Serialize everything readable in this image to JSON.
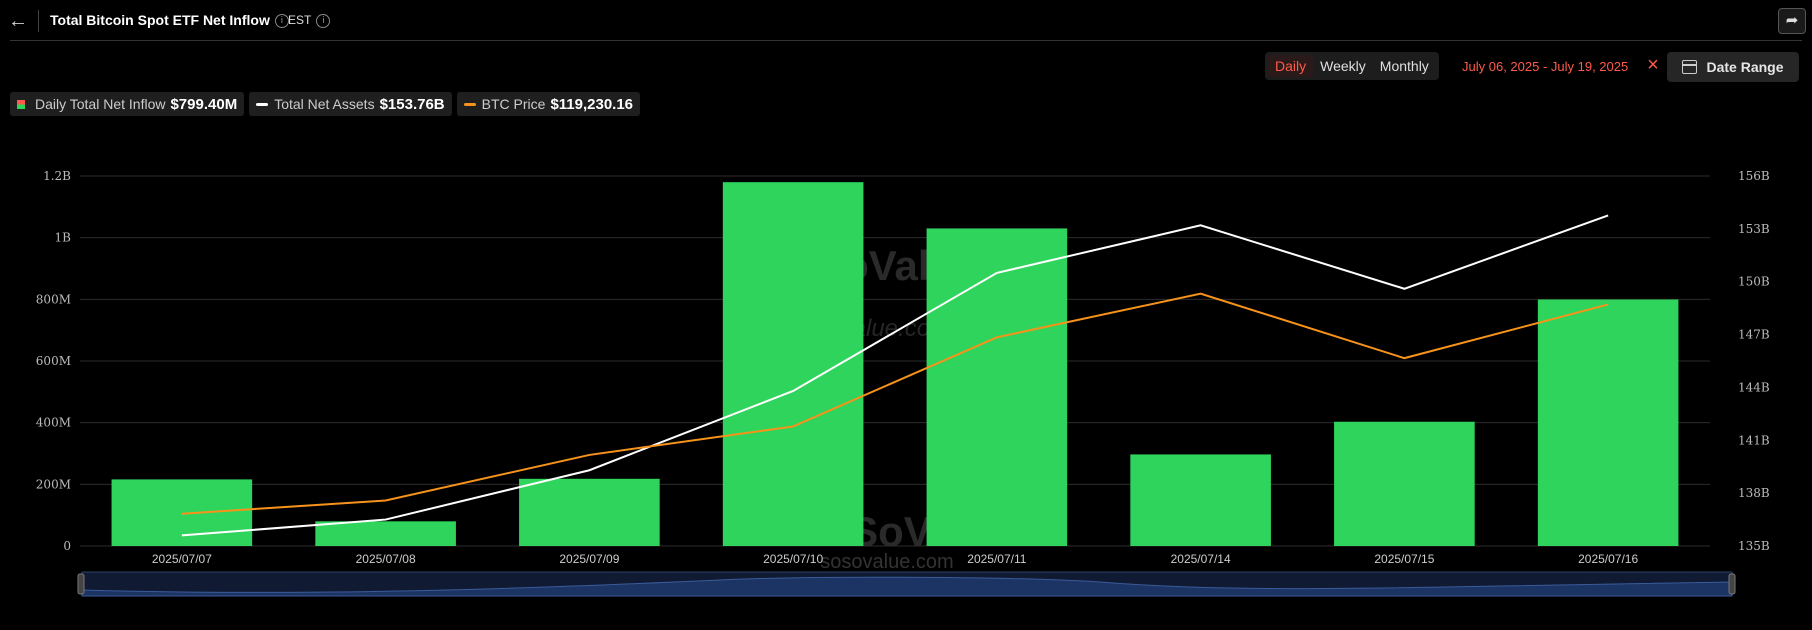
{
  "header": {
    "title": "Total Bitcoin Spot ETF Net Inflow",
    "timezone": "EST",
    "info_glyph": "i"
  },
  "controls": {
    "intervals": [
      "Daily",
      "Weekly",
      "Monthly"
    ],
    "active_interval": "Daily",
    "date_range_text": "July 06, 2025 - July 19, 2025",
    "date_range_button": "Date Range"
  },
  "legend": [
    {
      "label": "Daily Total Net Inflow",
      "value": "$799.40M",
      "color": "#2fd45c"
    },
    {
      "label": "Total Net Assets",
      "value": "$153.76B",
      "color": "#ffffff"
    },
    {
      "label": "BTC Price",
      "value": "$119,230.16",
      "color": "#f7931a"
    }
  ],
  "watermark": {
    "brand": "SoSoValue",
    "url": "sosovalue.com"
  },
  "chart_data": {
    "type": "bar",
    "categories": [
      "2025/07/07",
      "2025/07/08",
      "2025/07/09",
      "2025/07/10",
      "2025/07/11",
      "2025/07/14",
      "2025/07/15",
      "2025/07/16"
    ],
    "series": [
      {
        "name": "Daily Total Net Inflow",
        "type": "bar",
        "axis": "left",
        "color": "#2fd45c",
        "values": [
          216,
          80,
          218,
          1180,
          1030,
          297,
          403,
          799.4
        ]
      },
      {
        "name": "Total Net Assets",
        "type": "line",
        "axis": "right",
        "color": "#ffffff",
        "values": [
          135.6,
          136.5,
          139.3,
          143.8,
          150.5,
          153.2,
          149.6,
          153.76
        ]
      },
      {
        "name": "BTC Price",
        "type": "line",
        "axis": "none",
        "color": "#f7931a",
        "values": [
          108200,
          108900,
          111300,
          112800,
          117500,
          119800,
          116400,
          119230.16
        ]
      }
    ],
    "left_axis": {
      "ticks": [
        "0",
        "200M",
        "400M",
        "600M",
        "800M",
        "1B",
        "1.2B"
      ],
      "ylim_millions": [
        0,
        1200
      ]
    },
    "right_axis": {
      "ticks": [
        "135B",
        "138B",
        "141B",
        "144B",
        "147B",
        "150B",
        "153B",
        "156B"
      ],
      "ylim_billions": [
        135,
        156
      ]
    },
    "grid": true
  }
}
